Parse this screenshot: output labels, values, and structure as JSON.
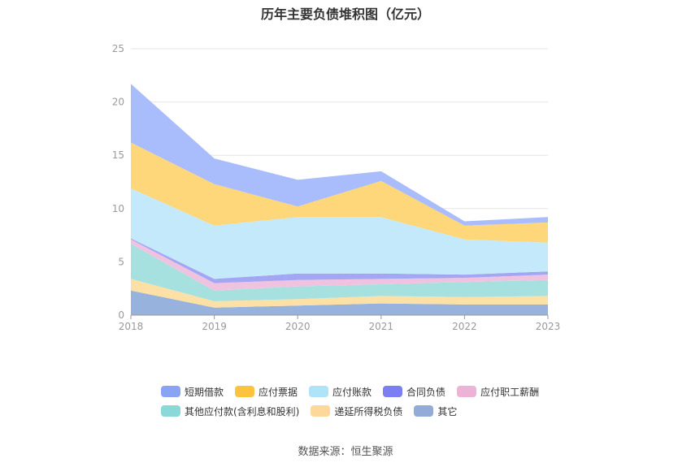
{
  "chart_data": {
    "type": "area",
    "stacked": true,
    "title": "历年主要负债堆积图（亿元）",
    "x": [
      "2018",
      "2019",
      "2020",
      "2021",
      "2022",
      "2023"
    ],
    "ylim": [
      0,
      25
    ],
    "yticks": [
      0,
      5,
      10,
      15,
      20,
      25
    ],
    "grid": true,
    "legend_position": "bottom",
    "series": [
      {
        "name": "其它",
        "color": "#97b2dc",
        "values": [
          2.3,
          0.7,
          0.9,
          1.1,
          1.0,
          1.0
        ]
      },
      {
        "name": "递延所得税负债",
        "color": "#fde0a6",
        "values": [
          1.1,
          0.6,
          0.6,
          0.7,
          0.7,
          0.8
        ]
      },
      {
        "name": "其他应付款(含利息和股利)",
        "color": "#a6e1e0",
        "values": [
          3.3,
          1.0,
          1.2,
          1.1,
          1.4,
          1.5
        ]
      },
      {
        "name": "应付职工薪酬",
        "color": "#efc3e0",
        "values": [
          0.4,
          0.7,
          0.6,
          0.5,
          0.4,
          0.5
        ]
      },
      {
        "name": "合同负债",
        "color": "#a3a6f3",
        "values": [
          0.1,
          0.4,
          0.6,
          0.5,
          0.3,
          0.3
        ]
      },
      {
        "name": "应付账款",
        "color": "#c4e9fa",
        "values": [
          4.7,
          5.0,
          5.3,
          5.3,
          3.3,
          2.7
        ]
      },
      {
        "name": "应付票据",
        "color": "#fed77b",
        "values": [
          4.3,
          3.9,
          1.0,
          3.4,
          1.3,
          1.9
        ]
      },
      {
        "name": "短期借款",
        "color": "#a9bcfb",
        "values": [
          5.5,
          2.4,
          2.5,
          0.9,
          0.4,
          0.5
        ]
      }
    ]
  },
  "legend": {
    "row1": [
      {
        "label": "短期借款",
        "color": "#8aa4f5"
      },
      {
        "label": "应付票据",
        "color": "#fcc33f"
      },
      {
        "label": "应付账款",
        "color": "#aee3f8"
      },
      {
        "label": "合同负债",
        "color": "#7b7ff1"
      },
      {
        "label": "应付职工薪酬",
        "color": "#ecb3d7"
      }
    ],
    "row2": [
      {
        "label": "其他应付款(含利息和股利)",
        "color": "#8ad8d7"
      },
      {
        "label": "递延所得税负债",
        "color": "#fcd99a"
      },
      {
        "label": "其它",
        "color": "#92acd7"
      }
    ]
  },
  "source": "数据来源：恒生聚源"
}
